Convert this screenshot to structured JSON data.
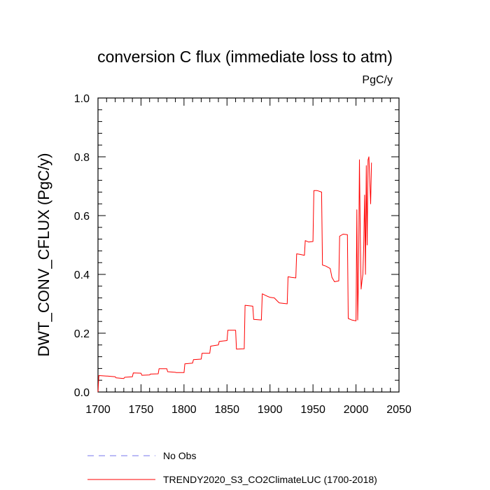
{
  "chart_data": {
    "type": "line",
    "title": "conversion C flux (immediate loss to atm)",
    "units": "PgC/y",
    "xlabel": "",
    "ylabel": "DWT_CONV_CFLUX  (PgC/y)",
    "xlim": [
      1700,
      2050
    ],
    "ylim": [
      0.0,
      1.0
    ],
    "xticks": [
      "1700",
      "1750",
      "1800",
      "1850",
      "1900",
      "1950",
      "2000",
      "2050"
    ],
    "yticks": [
      "0.0",
      "0.2",
      "0.4",
      "0.6",
      "0.8",
      "1.0"
    ],
    "legend": [
      {
        "label": "No Obs",
        "color": "#7777ee",
        "style": "dashed"
      },
      {
        "label": "TRENDY2020_S3_CO2ClimateLUC (1700-2018)",
        "color": "#ff0000",
        "style": "solid"
      }
    ],
    "series": [
      {
        "name": "TRENDY2020_S3_CO2ClimateLUC (1700-2018)",
        "color": "#ff0000",
        "x": [
          1700,
          1701,
          1710,
          1711,
          1720,
          1721,
          1730,
          1731,
          1740,
          1741,
          1750,
          1751,
          1760,
          1761,
          1770,
          1771,
          1780,
          1781,
          1790,
          1791,
          1800,
          1801,
          1810,
          1811,
          1820,
          1821,
          1830,
          1831,
          1840,
          1841,
          1850,
          1851,
          1860,
          1861,
          1870,
          1871,
          1880,
          1881,
          1890,
          1891,
          1895,
          1900,
          1905,
          1910,
          1911,
          1920,
          1921,
          1925,
          1930,
          1931,
          1935,
          1940,
          1941,
          1945,
          1950,
          1951,
          1955,
          1960,
          1961,
          1965,
          1970,
          1972,
          1975,
          1980,
          1981,
          1985,
          1990,
          1991,
          1995,
          2000,
          2001,
          2002,
          2003,
          2004,
          2005,
          2006,
          2007,
          2008,
          2009,
          2010,
          2011,
          2012,
          2013,
          2014,
          2015,
          2016,
          2017,
          2018
        ],
        "values": [
          0.0,
          0.056,
          0.054,
          0.054,
          0.052,
          0.048,
          0.046,
          0.05,
          0.052,
          0.065,
          0.064,
          0.057,
          0.058,
          0.061,
          0.062,
          0.079,
          0.079,
          0.069,
          0.067,
          0.066,
          0.066,
          0.096,
          0.098,
          0.11,
          0.112,
          0.132,
          0.132,
          0.156,
          0.16,
          0.172,
          0.175,
          0.21,
          0.21,
          0.146,
          0.147,
          0.295,
          0.292,
          0.247,
          0.245,
          0.334,
          0.328,
          0.322,
          0.32,
          0.305,
          0.303,
          0.3,
          0.392,
          0.39,
          0.388,
          0.47,
          0.468,
          0.465,
          0.515,
          0.51,
          0.512,
          0.685,
          0.685,
          0.68,
          0.432,
          0.428,
          0.42,
          0.39,
          0.375,
          0.378,
          0.53,
          0.537,
          0.535,
          0.25,
          0.245,
          0.242,
          0.62,
          0.245,
          0.42,
          0.79,
          0.53,
          0.35,
          0.38,
          0.4,
          0.5,
          0.67,
          0.4,
          0.77,
          0.5,
          0.79,
          0.8,
          0.72,
          0.64,
          0.78
        ]
      }
    ]
  }
}
